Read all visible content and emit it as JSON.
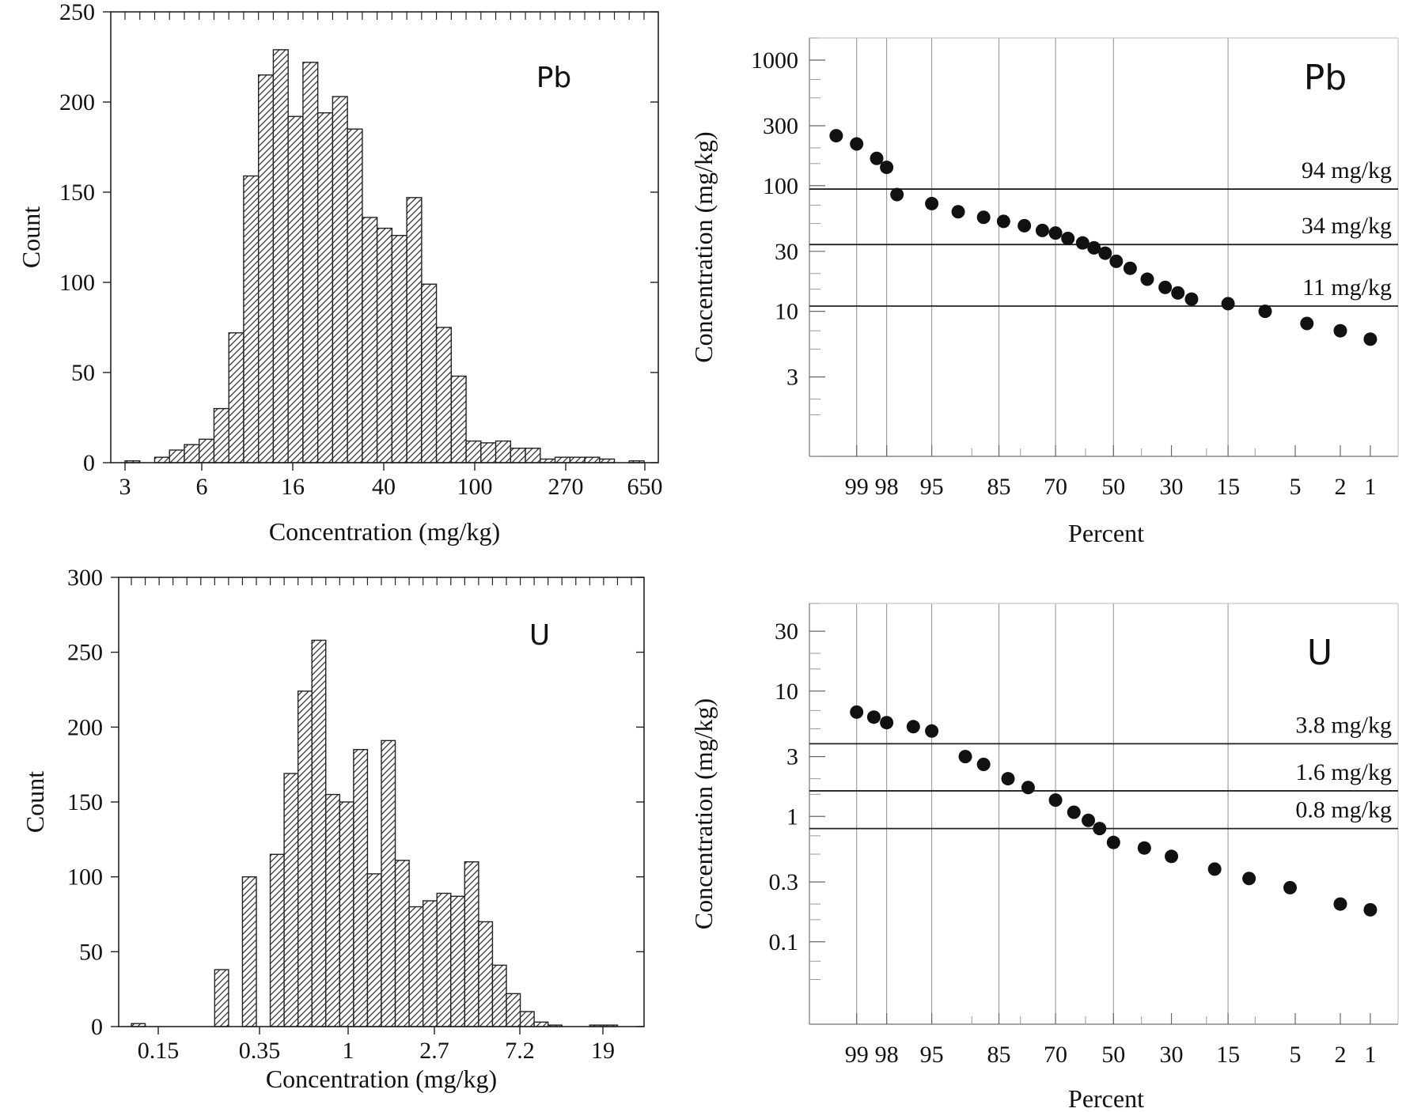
{
  "chart_data": [
    {
      "id": "pb_hist",
      "type": "bar",
      "panel_label": "Pb",
      "xlabel": "Concentration (mg/kg)",
      "ylabel": "Count",
      "ylim": [
        0,
        250
      ],
      "y_ticks": [
        0,
        50,
        100,
        150,
        200,
        250
      ],
      "x_tick_labels": [
        "3",
        "6",
        "16",
        "40",
        "100",
        "270",
        "650"
      ],
      "bin_count": 35,
      "values": [
        1,
        0,
        3,
        7,
        10,
        13,
        30,
        72,
        159,
        215,
        229,
        192,
        222,
        194,
        203,
        185,
        136,
        130,
        126,
        147,
        99,
        75,
        48,
        12,
        11,
        12,
        8,
        8,
        2,
        3,
        3,
        3,
        2,
        0,
        1
      ]
    },
    {
      "id": "pb_prob",
      "type": "scatter",
      "panel_label": "Pb",
      "xlabel": "Percent",
      "ylabel": "Concentration (mg/kg)",
      "x_tick_labels": [
        "99",
        "98",
        "95",
        "85",
        "70",
        "50",
        "30",
        "15",
        "5",
        "2",
        "1"
      ],
      "y_tick_labels": [
        "1000",
        "300",
        "100",
        "30",
        "10",
        "3"
      ],
      "y_scale": "log",
      "ylim": [
        0.7,
        1500
      ],
      "reference_lines": [
        {
          "value": 94,
          "label": "94 mg/kg"
        },
        {
          "value": 34,
          "label": "34 mg/kg"
        },
        {
          "value": 11,
          "label": "11 mg/kg"
        }
      ],
      "points": [
        {
          "x": 99.4,
          "y": 250
        },
        {
          "x": 99.0,
          "y": 215
        },
        {
          "x": 98.4,
          "y": 165
        },
        {
          "x": 98.0,
          "y": 140
        },
        {
          "x": 97.5,
          "y": 85
        },
        {
          "x": 95.0,
          "y": 72
        },
        {
          "x": 92.0,
          "y": 62
        },
        {
          "x": 88.0,
          "y": 56
        },
        {
          "x": 84.0,
          "y": 52
        },
        {
          "x": 79.0,
          "y": 48
        },
        {
          "x": 74.0,
          "y": 44
        },
        {
          "x": 70.0,
          "y": 42
        },
        {
          "x": 66.0,
          "y": 38
        },
        {
          "x": 61.0,
          "y": 35
        },
        {
          "x": 57.0,
          "y": 32
        },
        {
          "x": 53.0,
          "y": 29
        },
        {
          "x": 49.0,
          "y": 25
        },
        {
          "x": 44.0,
          "y": 22
        },
        {
          "x": 38.0,
          "y": 18
        },
        {
          "x": 32.0,
          "y": 15.5
        },
        {
          "x": 28.0,
          "y": 14
        },
        {
          "x": 24.0,
          "y": 12.5
        },
        {
          "x": 15.0,
          "y": 11.5
        },
        {
          "x": 8.5,
          "y": 10
        },
        {
          "x": 4.0,
          "y": 8
        },
        {
          "x": 2.0,
          "y": 7
        },
        {
          "x": 1.0,
          "y": 6
        }
      ]
    },
    {
      "id": "u_hist",
      "type": "bar",
      "panel_label": "U",
      "xlabel": "Concentration (mg/kg)",
      "ylabel": "Count",
      "ylim": [
        0,
        300
      ],
      "y_ticks": [
        0,
        50,
        100,
        150,
        200,
        250,
        300
      ],
      "x_tick_labels": [
        "0.15",
        "0.35",
        "1",
        "2.7",
        "7.2",
        "19"
      ],
      "bin_count": 36,
      "values": [
        2,
        0,
        0,
        0,
        0,
        0,
        38,
        0,
        100,
        0,
        115,
        169,
        224,
        258,
        155,
        150,
        185,
        102,
        191,
        111,
        80,
        84,
        89,
        87,
        110,
        70,
        41,
        22,
        10,
        3,
        1,
        0,
        0,
        1,
        1,
        0
      ]
    },
    {
      "id": "u_prob",
      "type": "scatter",
      "panel_label": "U",
      "xlabel": "Percent",
      "ylabel": "Concentration (mg/kg)",
      "x_tick_labels": [
        "99",
        "98",
        "95",
        "85",
        "70",
        "50",
        "30",
        "15",
        "5",
        "2",
        "1"
      ],
      "y_tick_labels": [
        "30",
        "10",
        "3",
        "1",
        "0.3",
        "0.1"
      ],
      "y_scale": "log",
      "ylim": [
        0.022,
        50
      ],
      "reference_lines": [
        {
          "value": 3.8,
          "label": "3.8 mg/kg"
        },
        {
          "value": 1.6,
          "label": "1.6 mg/kg"
        },
        {
          "value": 0.8,
          "label": "0.8 mg/kg"
        }
      ],
      "points": [
        {
          "x": 99.0,
          "y": 6.8
        },
        {
          "x": 98.5,
          "y": 6.2
        },
        {
          "x": 98.0,
          "y": 5.6
        },
        {
          "x": 96.5,
          "y": 5.2
        },
        {
          "x": 95.0,
          "y": 4.8
        },
        {
          "x": 91.0,
          "y": 3.0
        },
        {
          "x": 88.0,
          "y": 2.6
        },
        {
          "x": 83.0,
          "y": 2.0
        },
        {
          "x": 78.0,
          "y": 1.7
        },
        {
          "x": 70.0,
          "y": 1.35
        },
        {
          "x": 64.0,
          "y": 1.08
        },
        {
          "x": 59.0,
          "y": 0.93
        },
        {
          "x": 55.0,
          "y": 0.8
        },
        {
          "x": 50.0,
          "y": 0.62
        },
        {
          "x": 39.0,
          "y": 0.56
        },
        {
          "x": 30.0,
          "y": 0.48
        },
        {
          "x": 18.0,
          "y": 0.38
        },
        {
          "x": 11.0,
          "y": 0.32
        },
        {
          "x": 5.5,
          "y": 0.27
        },
        {
          "x": 2.0,
          "y": 0.2
        },
        {
          "x": 1.0,
          "y": 0.18
        }
      ]
    }
  ]
}
